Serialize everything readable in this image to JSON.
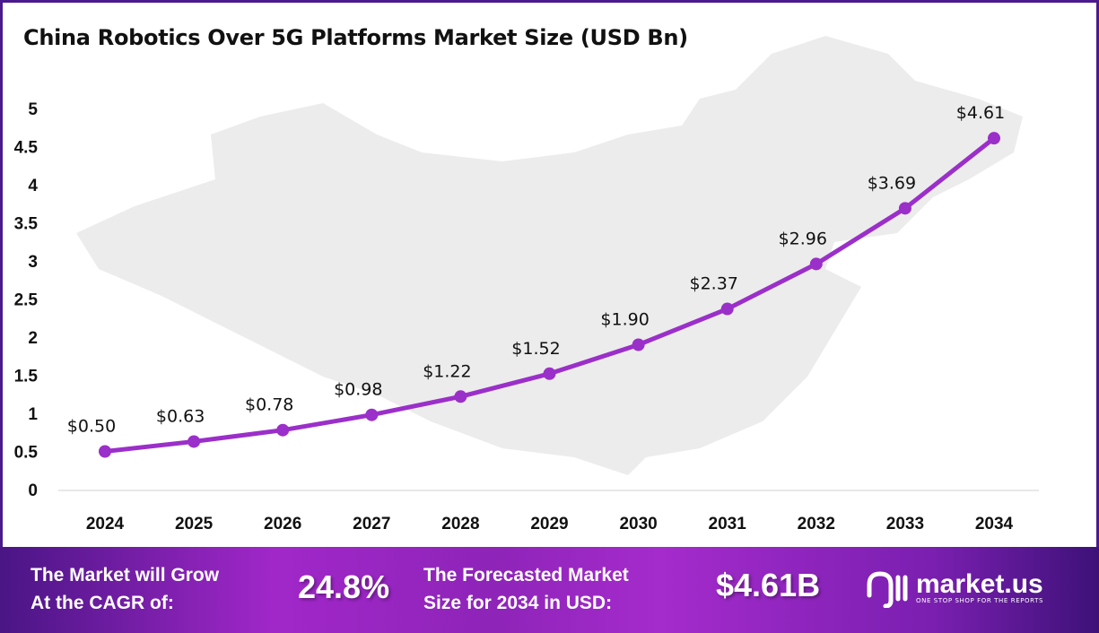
{
  "chart_data": {
    "type": "line",
    "title": "China Robotics Over 5G Platforms Market Size (USD Bn)",
    "categories": [
      "2024",
      "2025",
      "2026",
      "2027",
      "2028",
      "2029",
      "2030",
      "2031",
      "2032",
      "2033",
      "2034"
    ],
    "values": [
      0.5,
      0.63,
      0.78,
      0.98,
      1.22,
      1.52,
      1.9,
      2.37,
      2.96,
      3.69,
      4.61
    ],
    "data_labels": [
      "$0.50",
      "$0.63",
      "$0.78",
      "$0.98",
      "$1.22",
      "$1.52",
      "$1.90",
      "$2.37",
      "$2.96",
      "$3.69",
      "$4.61"
    ],
    "y_ticks": [
      "0",
      "0.5",
      "1",
      "1.5",
      "2",
      "2.5",
      "3",
      "3.5",
      "4",
      "4.5",
      "5"
    ],
    "ylim": [
      0,
      5
    ],
    "grid": false,
    "line_color": "#9b2fc9",
    "background": "map of China silhouette (light gray)"
  },
  "banner": {
    "cagr_label_line1": "The Market will Grow",
    "cagr_label_line2": "At the CAGR of:",
    "cagr_value": "24.8%",
    "forecast_label_line1": "The Forecasted Market",
    "forecast_label_line2": "Size for 2034 in USD:",
    "forecast_value": "$4.61B",
    "logo_name": "market.us",
    "logo_tagline": "ONE STOP SHOP FOR THE REPORTS"
  }
}
